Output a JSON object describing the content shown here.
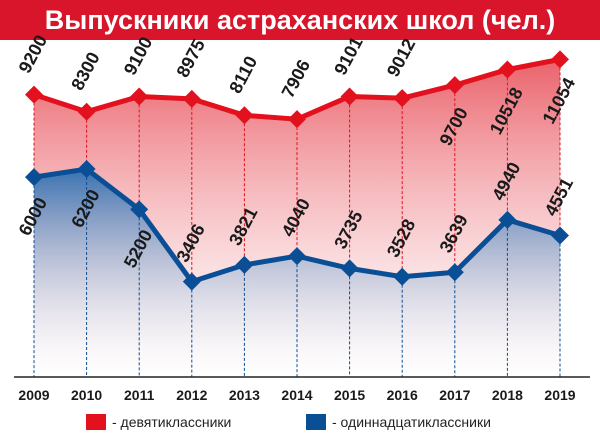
{
  "chart_data": {
    "type": "line",
    "title": "Выпускники астраханских школ (чел.)",
    "x": [
      "2009",
      "2010",
      "2011",
      "2012",
      "2013",
      "2014",
      "2015",
      "2016",
      "2017",
      "2018",
      "2019"
    ],
    "ylim": [
      0,
      11500
    ],
    "grid": false,
    "legend_position": "bottom",
    "series": [
      {
        "name": "- девятиклассники",
        "color": "#e3101d",
        "values": [
          9200,
          8300,
          9100,
          8975,
          8110,
          7906,
          9101,
          9012,
          9700,
          10518,
          11054
        ],
        "labels": [
          "9200",
          "8300",
          "9100",
          "8975",
          "8110",
          "7906",
          "9101",
          "9012",
          "9700",
          "10518",
          "11054"
        ]
      },
      {
        "name": "- одиннадцатиклассники",
        "color": "#0a4f96",
        "values": [
          6000,
          6200,
          5200,
          3406,
          3821,
          4040,
          3735,
          3528,
          3639,
          4940,
          4551
        ],
        "labels": [
          "6000",
          "6200",
          "5200",
          "3406",
          "3821",
          "4040",
          "3735",
          "3528",
          "3639",
          "4940",
          "4551"
        ]
      }
    ]
  }
}
